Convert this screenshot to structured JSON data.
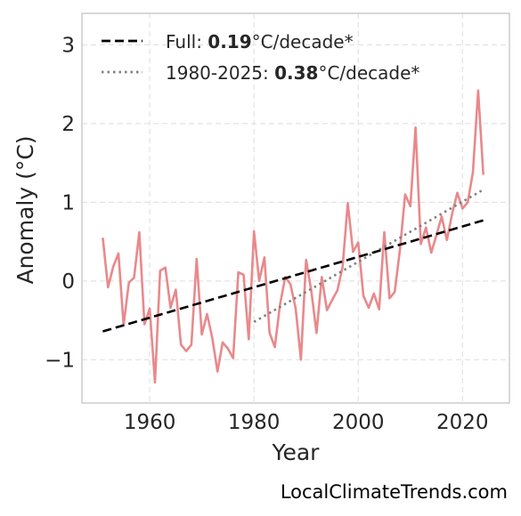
{
  "chart_data": {
    "type": "line",
    "xlabel": "Year",
    "ylabel": "Anomaly (°C)",
    "xlim": [
      1947,
      2029
    ],
    "ylim": [
      -1.55,
      3.4
    ],
    "x_ticks": [
      1960,
      1980,
      2000,
      2020
    ],
    "x_tick_labels": [
      "1960",
      "1980",
      "2000",
      "2020"
    ],
    "y_ticks": [
      -1,
      0,
      1,
      2,
      3
    ],
    "y_tick_labels": [
      "−1",
      "0",
      "1",
      "2",
      "3"
    ],
    "grid": true,
    "legend_position": "top-left",
    "series": [
      {
        "kind": "data",
        "color": "#e8898c",
        "x": [
          1951,
          1952,
          1953,
          1954,
          1955,
          1956,
          1957,
          1958,
          1959,
          1960,
          1961,
          1962,
          1963,
          1964,
          1965,
          1966,
          1967,
          1968,
          1969,
          1970,
          1971,
          1972,
          1973,
          1974,
          1975,
          1976,
          1977,
          1978,
          1979,
          1980,
          1981,
          1982,
          1983,
          1984,
          1985,
          1986,
          1987,
          1988,
          1989,
          1990,
          1991,
          1992,
          1993,
          1994,
          1995,
          1996,
          1997,
          1998,
          1999,
          2000,
          2001,
          2002,
          2003,
          2004,
          2005,
          2006,
          2007,
          2008,
          2009,
          2010,
          2011,
          2012,
          2013,
          2014,
          2015,
          2016,
          2017,
          2018,
          2019,
          2020,
          2021,
          2022,
          2023,
          2024
        ],
        "y": [
          0.55,
          -0.08,
          0.18,
          0.35,
          -0.56,
          -0.02,
          0.04,
          0.62,
          -0.55,
          -0.35,
          -1.29,
          0.13,
          0.17,
          -0.34,
          -0.11,
          -0.81,
          -0.89,
          -0.81,
          0.28,
          -0.68,
          -0.42,
          -0.72,
          -1.15,
          -0.78,
          -0.86,
          -0.98,
          0.11,
          0.08,
          -0.74,
          0.63,
          0.0,
          0.3,
          -0.66,
          -0.84,
          -0.3,
          0.05,
          -0.04,
          -0.35,
          -1.0,
          0.27,
          -0.13,
          -0.66,
          0.05,
          -0.37,
          -0.24,
          -0.12,
          0.18,
          0.99,
          0.37,
          0.49,
          -0.19,
          -0.34,
          -0.16,
          -0.36,
          0.62,
          -0.22,
          -0.14,
          0.4,
          1.1,
          0.95,
          1.95,
          0.47,
          0.68,
          0.36,
          0.58,
          0.82,
          0.52,
          0.85,
          1.12,
          0.92,
          1.0,
          1.38,
          2.42,
          1.35
        ]
      },
      {
        "kind": "trend-full",
        "name": "Full: ",
        "rate": "0.19",
        "unit": "°C/decade*",
        "color": "#000000",
        "style": "dashed",
        "x": [
          1951,
          2024
        ],
        "y": [
          -0.64,
          0.77
        ]
      },
      {
        "kind": "trend-recent",
        "name": "1980-2025: ",
        "rate": "0.38",
        "unit": "°C/decade*",
        "color": "#808080",
        "style": "dotted",
        "x": [
          1980,
          2024
        ],
        "y": [
          -0.52,
          1.16
        ]
      }
    ]
  },
  "watermark": "LocalClimateTrends.com"
}
